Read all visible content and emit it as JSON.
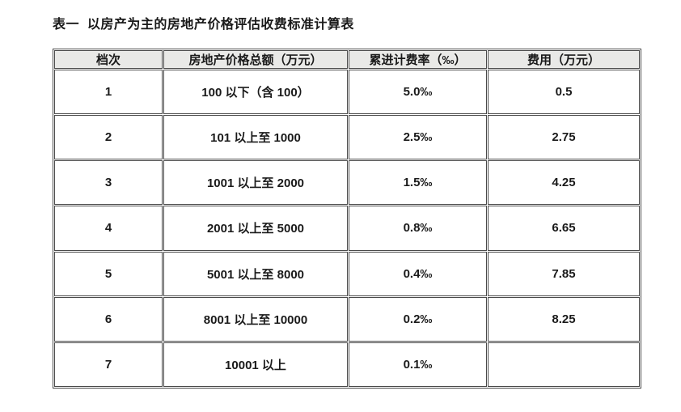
{
  "title": "表一  以房产为主的房地产价格评估收费标准计算表",
  "table": {
    "headers": [
      "档次",
      "房地产价格总额（万元）",
      "累进计费率（‰）",
      "费用（万元）"
    ],
    "rows": [
      {
        "grade": "1",
        "range": "100 以下（含 100）",
        "rate": "5.0‰",
        "fee": "0.5"
      },
      {
        "grade": "2",
        "range": "101 以上至 1000",
        "rate": "2.5‰",
        "fee": "2.75"
      },
      {
        "grade": "3",
        "range": "1001 以上至 2000",
        "rate": "1.5‰",
        "fee": "4.25"
      },
      {
        "grade": "4",
        "range": "2001 以上至 5000",
        "rate": "0.8‰",
        "fee": "6.65"
      },
      {
        "grade": "5",
        "range": "5001 以上至 8000",
        "rate": "0.4‰",
        "fee": "7.85"
      },
      {
        "grade": "6",
        "range": "8001 以上至 10000",
        "rate": "0.2‰",
        "fee": "8.25"
      },
      {
        "grade": "7",
        "range": "10001 以上",
        "rate": "0.1‰",
        "fee": ""
      }
    ],
    "colors": {
      "header_bg": "#e9e9e7",
      "border": "#4a4a4a",
      "text": "#1a1a1a"
    }
  }
}
